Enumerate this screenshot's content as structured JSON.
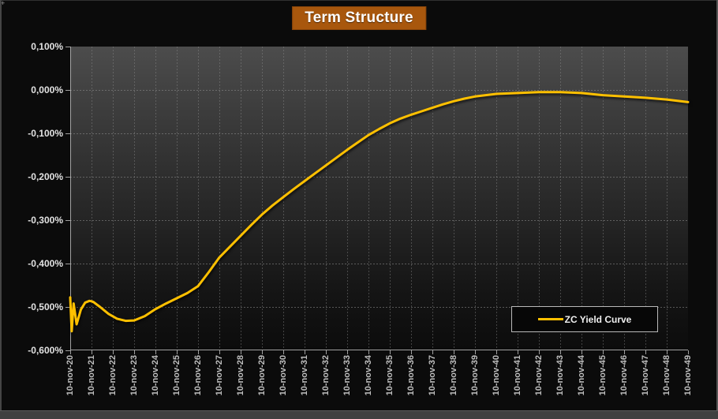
{
  "window": {
    "background": "#0b0b0b",
    "frame_color": "#454545"
  },
  "chart_data": {
    "type": "line",
    "title": "Term Structure",
    "title_bg": "#a8570d",
    "xlabel": "",
    "ylabel": "",
    "grid": true,
    "plot_bg_gradient": [
      "#4c4c4c",
      "#0c0c0c"
    ],
    "ylim": [
      -0.6,
      0.1
    ],
    "y_tick_labels": [
      "0,100%",
      "0,000%",
      "-0,100%",
      "-0,200%",
      "-0,300%",
      "-0,400%",
      "-0,500%",
      "-0,600%"
    ],
    "y_tick_values": [
      0.1,
      0.0,
      -0.1,
      -0.2,
      -0.3,
      -0.4,
      -0.5,
      -0.6
    ],
    "x_tick_labels": [
      "10-nov-20",
      "10-nov-21",
      "10-nov-22",
      "10-nov-23",
      "10-nov-24",
      "10-nov-25",
      "10-nov-26",
      "10-nov-27",
      "10-nov-28",
      "10-nov-29",
      "10-nov-30",
      "10-nov-31",
      "10-nov-32",
      "10-nov-33",
      "10-nov-34",
      "10-nov-35",
      "10-nov-36",
      "10-nov-37",
      "10-nov-38",
      "10-nov-39",
      "10-nov-40",
      "10-nov-41",
      "10-nov-42",
      "10-nov-43",
      "10-nov-44",
      "10-nov-45",
      "10-nov-46",
      "10-nov-47",
      "10-nov-48",
      "10-nov-49"
    ],
    "x_span_years": 29,
    "legend": {
      "position": "bottom-right",
      "entries": [
        "ZC Yield Curve"
      ]
    },
    "series": [
      {
        "name": "ZC Yield Curve",
        "color": "#ffc000",
        "points_t_years_vs_pct": [
          [
            0.0,
            -0.478
          ],
          [
            0.07,
            -0.556
          ],
          [
            0.16,
            -0.492
          ],
          [
            0.3,
            -0.54
          ],
          [
            0.5,
            -0.506
          ],
          [
            0.7,
            -0.49
          ],
          [
            0.9,
            -0.486
          ],
          [
            1.0,
            -0.487
          ],
          [
            1.1,
            -0.489
          ],
          [
            1.4,
            -0.5
          ],
          [
            1.8,
            -0.516
          ],
          [
            2.2,
            -0.527
          ],
          [
            2.6,
            -0.532
          ],
          [
            3.0,
            -0.531
          ],
          [
            3.5,
            -0.521
          ],
          [
            4.0,
            -0.505
          ],
          [
            4.5,
            -0.492
          ],
          [
            5.0,
            -0.48
          ],
          [
            5.5,
            -0.468
          ],
          [
            6.0,
            -0.452
          ],
          [
            6.5,
            -0.42
          ],
          [
            7.0,
            -0.386
          ],
          [
            7.5,
            -0.361
          ],
          [
            8.0,
            -0.336
          ],
          [
            8.5,
            -0.311
          ],
          [
            9.0,
            -0.287
          ],
          [
            9.5,
            -0.266
          ],
          [
            10.0,
            -0.247
          ],
          [
            10.5,
            -0.228
          ],
          [
            11.0,
            -0.21
          ],
          [
            11.5,
            -0.192
          ],
          [
            12.0,
            -0.174
          ],
          [
            12.5,
            -0.156
          ],
          [
            13.0,
            -0.138
          ],
          [
            13.5,
            -0.121
          ],
          [
            14.0,
            -0.104
          ],
          [
            14.5,
            -0.09
          ],
          [
            15.0,
            -0.077
          ],
          [
            15.5,
            -0.066
          ],
          [
            16.0,
            -0.057
          ],
          [
            16.5,
            -0.049
          ],
          [
            17.0,
            -0.041
          ],
          [
            17.5,
            -0.033
          ],
          [
            18.0,
            -0.026
          ],
          [
            18.5,
            -0.02
          ],
          [
            19.0,
            -0.015
          ],
          [
            19.5,
            -0.012
          ],
          [
            20.0,
            -0.009
          ],
          [
            21.0,
            -0.007
          ],
          [
            22.0,
            -0.005
          ],
          [
            23.0,
            -0.005
          ],
          [
            24.0,
            -0.007
          ],
          [
            25.0,
            -0.012
          ],
          [
            26.0,
            -0.015
          ],
          [
            27.0,
            -0.018
          ],
          [
            28.0,
            -0.022
          ],
          [
            29.0,
            -0.028
          ]
        ]
      }
    ],
    "style": {
      "gridline_color": "#909090",
      "axis_color": "#b0b0b0",
      "y_label_color": "#e2e2e2",
      "x_label_color": "#bfbfbf"
    }
  }
}
